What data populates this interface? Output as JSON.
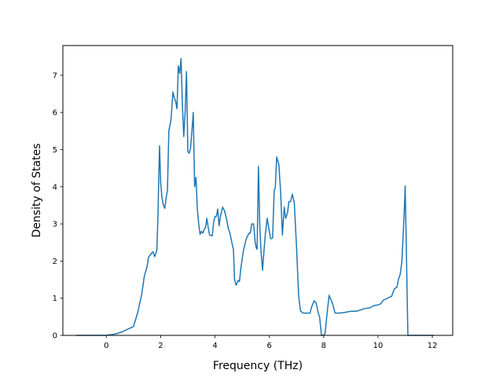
{
  "chart_data": {
    "type": "line",
    "title": "",
    "xlabel": "Frequency (THz)",
    "ylabel": "Density of States",
    "xlim": [
      -1.6,
      12.75
    ],
    "ylim": [
      0,
      7.8
    ],
    "x_ticks": [
      0,
      2,
      4,
      6,
      8,
      10,
      12
    ],
    "y_ticks": [
      0,
      1,
      2,
      3,
      4,
      5,
      6,
      7
    ],
    "grid": false,
    "legend": "none",
    "series": [
      {
        "color": "#1f77b4",
        "points": [
          [
            -1.1,
            0.0
          ],
          [
            -0.5,
            0.0
          ],
          [
            0.0,
            0.0
          ],
          [
            0.2,
            0.02
          ],
          [
            0.4,
            0.05
          ],
          [
            0.6,
            0.1
          ],
          [
            0.8,
            0.17
          ],
          [
            1.0,
            0.24
          ],
          [
            1.15,
            0.6
          ],
          [
            1.3,
            1.1
          ],
          [
            1.4,
            1.6
          ],
          [
            1.5,
            1.85
          ],
          [
            1.55,
            2.1
          ],
          [
            1.65,
            2.2
          ],
          [
            1.72,
            2.25
          ],
          [
            1.78,
            2.12
          ],
          [
            1.82,
            2.2
          ],
          [
            1.86,
            2.3
          ],
          [
            1.9,
            3.2
          ],
          [
            1.93,
            4.3
          ],
          [
            1.96,
            5.1
          ],
          [
            2.0,
            4.1
          ],
          [
            2.05,
            3.7
          ],
          [
            2.1,
            3.5
          ],
          [
            2.15,
            3.42
          ],
          [
            2.2,
            3.7
          ],
          [
            2.25,
            3.9
          ],
          [
            2.3,
            5.5
          ],
          [
            2.38,
            5.8
          ],
          [
            2.45,
            6.55
          ],
          [
            2.5,
            6.4
          ],
          [
            2.55,
            6.3
          ],
          [
            2.6,
            6.1
          ],
          [
            2.65,
            7.25
          ],
          [
            2.7,
            7.05
          ],
          [
            2.75,
            7.45
          ],
          [
            2.8,
            6.2
          ],
          [
            2.85,
            5.35
          ],
          [
            2.9,
            6.0
          ],
          [
            2.95,
            7.1
          ],
          [
            3.0,
            4.95
          ],
          [
            3.05,
            4.9
          ],
          [
            3.1,
            5.05
          ],
          [
            3.15,
            5.5
          ],
          [
            3.2,
            6.0
          ],
          [
            3.25,
            4.0
          ],
          [
            3.3,
            4.25
          ],
          [
            3.35,
            3.4
          ],
          [
            3.4,
            3.0
          ],
          [
            3.45,
            2.72
          ],
          [
            3.5,
            2.8
          ],
          [
            3.55,
            2.75
          ],
          [
            3.6,
            2.85
          ],
          [
            3.65,
            2.9
          ],
          [
            3.7,
            3.15
          ],
          [
            3.75,
            2.9
          ],
          [
            3.8,
            2.7
          ],
          [
            3.9,
            2.68
          ],
          [
            3.95,
            3.05
          ],
          [
            4.0,
            3.2
          ],
          [
            4.05,
            3.2
          ],
          [
            4.1,
            3.4
          ],
          [
            4.15,
            2.95
          ],
          [
            4.2,
            3.2
          ],
          [
            4.28,
            3.45
          ],
          [
            4.35,
            3.35
          ],
          [
            4.42,
            3.15
          ],
          [
            4.5,
            2.85
          ],
          [
            4.55,
            2.75
          ],
          [
            4.62,
            2.5
          ],
          [
            4.68,
            2.3
          ],
          [
            4.72,
            1.5
          ],
          [
            4.78,
            1.35
          ],
          [
            4.85,
            1.48
          ],
          [
            4.9,
            1.45
          ],
          [
            4.95,
            1.8
          ],
          [
            5.05,
            2.3
          ],
          [
            5.15,
            2.6
          ],
          [
            5.25,
            2.75
          ],
          [
            5.3,
            2.75
          ],
          [
            5.35,
            3.0
          ],
          [
            5.42,
            3.0
          ],
          [
            5.48,
            2.5
          ],
          [
            5.52,
            2.35
          ],
          [
            5.55,
            2.32
          ],
          [
            5.6,
            4.55
          ],
          [
            5.65,
            2.9
          ],
          [
            5.7,
            2.2
          ],
          [
            5.75,
            1.75
          ],
          [
            5.8,
            2.25
          ],
          [
            5.85,
            2.7
          ],
          [
            5.92,
            3.15
          ],
          [
            6.0,
            2.8
          ],
          [
            6.05,
            2.6
          ],
          [
            6.12,
            2.62
          ],
          [
            6.18,
            3.9
          ],
          [
            6.22,
            3.98
          ],
          [
            6.27,
            4.8
          ],
          [
            6.35,
            4.6
          ],
          [
            6.42,
            3.8
          ],
          [
            6.48,
            2.7
          ],
          [
            6.55,
            3.45
          ],
          [
            6.6,
            3.15
          ],
          [
            6.67,
            3.3
          ],
          [
            6.72,
            3.6
          ],
          [
            6.78,
            3.6
          ],
          [
            6.85,
            3.8
          ],
          [
            6.92,
            3.55
          ],
          [
            7.0,
            2.4
          ],
          [
            7.08,
            1.05
          ],
          [
            7.15,
            0.65
          ],
          [
            7.25,
            0.6
          ],
          [
            7.4,
            0.6
          ],
          [
            7.5,
            0.6
          ],
          [
            7.55,
            0.75
          ],
          [
            7.65,
            0.93
          ],
          [
            7.72,
            0.88
          ],
          [
            7.8,
            0.6
          ],
          [
            7.85,
            0.5
          ],
          [
            7.92,
            0.0
          ],
          [
            8.0,
            0.0
          ],
          [
            8.05,
            0.05
          ],
          [
            8.12,
            0.55
          ],
          [
            8.2,
            1.08
          ],
          [
            8.27,
            0.95
          ],
          [
            8.33,
            0.85
          ],
          [
            8.42,
            0.6
          ],
          [
            8.6,
            0.6
          ],
          [
            8.8,
            0.62
          ],
          [
            9.0,
            0.65
          ],
          [
            9.2,
            0.65
          ],
          [
            9.35,
            0.68
          ],
          [
            9.5,
            0.72
          ],
          [
            9.7,
            0.74
          ],
          [
            9.85,
            0.8
          ],
          [
            10.0,
            0.82
          ],
          [
            10.1,
            0.85
          ],
          [
            10.2,
            0.95
          ],
          [
            10.3,
            0.98
          ],
          [
            10.4,
            1.02
          ],
          [
            10.5,
            1.05
          ],
          [
            10.6,
            1.25
          ],
          [
            10.7,
            1.3
          ],
          [
            10.75,
            1.5
          ],
          [
            10.82,
            1.65
          ],
          [
            10.88,
            2.0
          ],
          [
            10.92,
            2.6
          ],
          [
            10.97,
            3.4
          ],
          [
            11.0,
            4.02
          ],
          [
            11.04,
            2.5
          ],
          [
            11.08,
            0.8
          ],
          [
            11.1,
            0.0
          ],
          [
            11.5,
            0.0
          ],
          [
            12.0,
            0.0
          ],
          [
            12.05,
            0.0
          ]
        ]
      }
    ]
  }
}
